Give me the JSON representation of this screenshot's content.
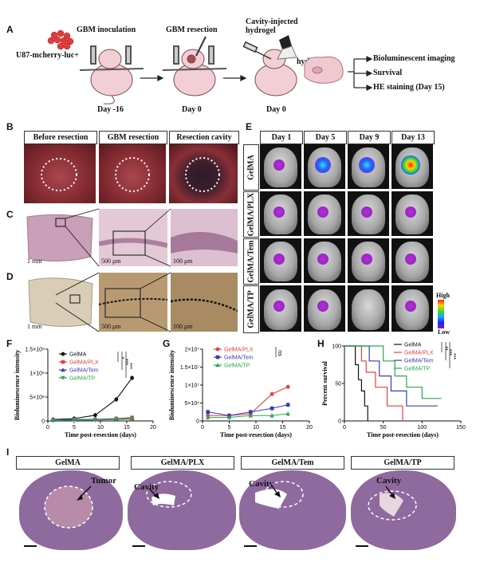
{
  "panel_letters": [
    "A",
    "B",
    "C",
    "D",
    "E",
    "F",
    "G",
    "H",
    "I"
  ],
  "panelA": {
    "step1_title": "GBM  inoculation",
    "cell_line": "U87-mcherry-luc+",
    "step1_day": "Day  -16",
    "step2_title": "GBM  resection",
    "step2_day": "Day 0",
    "step3_title": "Cavity-injected hydrogel",
    "step3_day": "Day 0",
    "hydrogel_label": "hydrogel",
    "outcomes": [
      "Bioluminescent imaging",
      "Survival",
      "HE staining (Day 15)"
    ]
  },
  "panelB": {
    "labels": [
      "Before resection",
      "GBM resection",
      "Resection cavity"
    ]
  },
  "panelC": {
    "scalebars": [
      "1 mm",
      "500 μm",
      "100 μm"
    ]
  },
  "panelD": {
    "scalebars": [
      "1 mm",
      "500 μm",
      "100 μm"
    ]
  },
  "panelE": {
    "days": [
      "Day 1",
      "Day 5",
      "Day 9",
      "Day 13"
    ],
    "groups": [
      "GelMA",
      "GelMA/PLX",
      "GelMA/Tem",
      "GelMA/TP"
    ],
    "colorbar_high": "High",
    "colorbar_low": "Low"
  },
  "chart_data": [
    {
      "id": "F",
      "type": "line",
      "xlabel": "Time post-resection (days)",
      "ylabel": "Bioluminescence intensity",
      "x": [
        1,
        5,
        9,
        13,
        16
      ],
      "xlim": [
        0,
        20
      ],
      "xticks": [
        "0",
        "5",
        "10",
        "15",
        "20"
      ],
      "ylim": [
        0,
        15
      ],
      "yticks": [
        "0",
        "5×10⁸",
        "1×10⁹",
        "1.5×10⁹"
      ],
      "series": [
        {
          "name": "GelMA",
          "color": "#111111",
          "marker": "circle",
          "values": [
            0.3,
            0.5,
            1.2,
            4.5,
            9.0
          ]
        },
        {
          "name": "GelMA/PLX",
          "color": "#e8403a",
          "marker": "square",
          "values": [
            0.2,
            0.3,
            0.3,
            0.5,
            0.7
          ]
        },
        {
          "name": "GelMA/Tem",
          "color": "#3b3bb3",
          "marker": "triangle",
          "values": [
            0.2,
            0.3,
            0.3,
            0.4,
            0.5
          ]
        },
        {
          "name": "GelMA/TP",
          "color": "#2aa84a",
          "marker": "inv-triangle",
          "values": [
            0.1,
            0.2,
            0.2,
            0.3,
            0.4
          ]
        }
      ],
      "significance": [
        "*",
        "***",
        "***"
      ]
    },
    {
      "id": "G",
      "type": "line",
      "xlabel": "Time post-resection (days)",
      "ylabel": "Bioluminescence intensity",
      "x": [
        1,
        5,
        9,
        13,
        16
      ],
      "xlim": [
        0,
        20
      ],
      "xticks": [
        "0",
        "5",
        "10",
        "15",
        "20"
      ],
      "ylim": [
        0,
        20
      ],
      "yticks": [
        "0",
        "5×10⁶",
        "1×10⁷",
        "1.5×10⁷",
        "2×10⁷"
      ],
      "series": [
        {
          "name": "GelMA/PLX",
          "color": "#e8403a",
          "marker": "circle",
          "values": [
            1.5,
            1.5,
            2.0,
            7.5,
            9.5
          ]
        },
        {
          "name": "GelMA/Tem",
          "color": "#3b3bb3",
          "marker": "square",
          "values": [
            2.5,
            1.5,
            2.5,
            3.5,
            4.5
          ]
        },
        {
          "name": "GelMA/TP",
          "color": "#2aa84a",
          "marker": "triangle",
          "values": [
            1.0,
            1.0,
            1.5,
            1.5,
            2.0
          ]
        }
      ],
      "significance": [
        "ns"
      ]
    },
    {
      "id": "H",
      "type": "line",
      "xlabel": "Time post-resection (days)",
      "ylabel": "Percent survival",
      "xlim": [
        0,
        150
      ],
      "xticks": [
        "0",
        "50",
        "100",
        "150"
      ],
      "ylim": [
        0,
        100
      ],
      "yticks": [
        "0",
        "50",
        "100"
      ],
      "series": [
        {
          "name": "GelMA",
          "color": "#111111",
          "steps": [
            [
              0,
              100
            ],
            [
              10,
              100
            ],
            [
              14,
              75
            ],
            [
              18,
              55
            ],
            [
              22,
              40
            ],
            [
              26,
              20
            ],
            [
              30,
              0
            ]
          ]
        },
        {
          "name": "GelMA/PLX",
          "color": "#e8403a",
          "steps": [
            [
              0,
              100
            ],
            [
              18,
              100
            ],
            [
              22,
              80
            ],
            [
              28,
              65
            ],
            [
              40,
              45
            ],
            [
              55,
              20
            ],
            [
              75,
              0
            ]
          ]
        },
        {
          "name": "GelMA/Tem",
          "color": "#3b3bb3",
          "steps": [
            [
              0,
              100
            ],
            [
              25,
              100
            ],
            [
              32,
              80
            ],
            [
              45,
              60
            ],
            [
              60,
              40
            ],
            [
              80,
              20
            ],
            [
              120,
              20
            ]
          ]
        },
        {
          "name": "GelMA/TP",
          "color": "#2aa84a",
          "steps": [
            [
              0,
              100
            ],
            [
              40,
              100
            ],
            [
              50,
              80
            ],
            [
              65,
              60
            ],
            [
              80,
              45
            ],
            [
              100,
              30
            ],
            [
              125,
              30
            ]
          ]
        }
      ],
      "significance": [
        "**",
        "***",
        "***"
      ]
    }
  ],
  "panelI": {
    "labels": [
      "GelMA",
      "GelMA/PLX",
      "GelMA/Tem",
      "GelMA/TP"
    ],
    "annotations": [
      "Tumor",
      "Cavity",
      "Cavity",
      "Cavity"
    ]
  }
}
